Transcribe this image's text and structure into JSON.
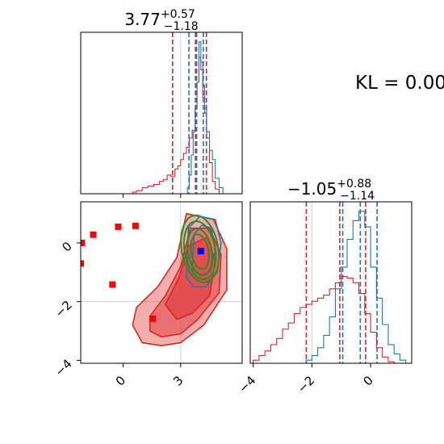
{
  "kl_text": "KL = 0.00",
  "colors": {
    "red": "#d62728",
    "blue": "#1f77b4",
    "green": "#2e8b1f",
    "red_fill": "#e2494a",
    "marker_red": "#ff0000",
    "marker_blue": "#0000ff",
    "grid": "#cfcfcf"
  },
  "chart_data": [
    {
      "panel": "top-left",
      "type": "histogram",
      "title": {
        "value": "3.77",
        "sup": "+0.57",
        "sub": "−1.18"
      },
      "xlim": [
        -2.2,
        6.2
      ],
      "grid_x": [
        3
      ],
      "series": [
        {
          "name": "",
          "color": "red",
          "bins": [
            [
              0,
              0.0
            ],
            [
              0.5,
              0.01
            ],
            [
              0.7,
              0.02
            ],
            [
              1.0,
              0.04
            ],
            [
              1.3,
              0.05
            ],
            [
              1.6,
              0.06
            ],
            [
              1.9,
              0.08
            ],
            [
              2.1,
              0.09
            ],
            [
              2.3,
              0.12
            ],
            [
              2.5,
              0.11
            ],
            [
              2.7,
              0.16
            ],
            [
              2.85,
              0.18
            ],
            [
              3.0,
              0.22
            ],
            [
              3.15,
              0.26
            ],
            [
              3.3,
              0.3
            ],
            [
              3.45,
              0.36
            ],
            [
              3.6,
              0.41
            ],
            [
              3.75,
              0.55
            ],
            [
              3.85,
              0.72
            ],
            [
              3.95,
              0.88
            ],
            [
              4.05,
              0.8
            ],
            [
              4.15,
              0.62
            ],
            [
              4.25,
              0.52
            ],
            [
              4.35,
              0.36
            ],
            [
              4.5,
              0.2
            ],
            [
              4.65,
              0.08
            ],
            [
              4.8,
              0.03
            ],
            [
              5.0,
              0.0
            ]
          ]
        },
        {
          "name": "",
          "color": "blue",
          "bins": [
            [
              3.2,
              0.0
            ],
            [
              3.35,
              0.04
            ],
            [
              3.45,
              0.12
            ],
            [
              3.55,
              0.25
            ],
            [
              3.65,
              0.4
            ],
            [
              3.75,
              0.55
            ],
            [
              3.85,
              0.72
            ],
            [
              3.95,
              0.98
            ],
            [
              4.05,
              0.85
            ],
            [
              4.15,
              0.7
            ],
            [
              4.25,
              0.55
            ],
            [
              4.35,
              0.4
            ],
            [
              4.5,
              0.28
            ],
            [
              4.65,
              0.22
            ],
            [
              4.8,
              0.1
            ],
            [
              5.0,
              0.04
            ],
            [
              5.2,
              0.0
            ]
          ]
        }
      ],
      "vlines": [
        {
          "x": 2.58,
          "color": "red"
        },
        {
          "x": 3.77,
          "color": "red"
        },
        {
          "x": 4.34,
          "color": "red"
        },
        {
          "x": 3.43,
          "color": "blue"
        },
        {
          "x": 3.83,
          "color": "blue"
        },
        {
          "x": 4.18,
          "color": "blue"
        }
      ]
    },
    {
      "panel": "bottom-left",
      "type": "scatter-contour",
      "xlim": [
        -2.2,
        6.2
      ],
      "ylim": [
        -4.1,
        1.4
      ],
      "xticks": [
        0,
        3
      ],
      "xtick_labels": [
        "0",
        "3"
      ],
      "yticks": [
        0,
        -2,
        -4
      ],
      "ytick_labels": [
        "0",
        "−2",
        "−4"
      ],
      "grid_x": [
        3
      ],
      "grid_y": [
        -2
      ],
      "markers_red": [
        [
          -2.2,
          -0.7
        ],
        [
          -2.15,
          0.0
        ],
        [
          -1.55,
          0.28
        ],
        [
          -0.55,
          -1.42
        ],
        [
          -0.25,
          0.55
        ],
        [
          0.65,
          0.58
        ],
        [
          1.55,
          -2.58
        ]
      ],
      "marker_blue": [
        4.05,
        -0.28
      ],
      "contours_red": [
        [
          [
            0.7,
            -2.2
          ],
          [
            1.8,
            -1.5
          ],
          [
            2.8,
            -0.5
          ],
          [
            3.3,
            1.0
          ],
          [
            4.7,
            0.8
          ],
          [
            5.4,
            -0.2
          ],
          [
            5.4,
            -1.6
          ],
          [
            4.2,
            -2.8
          ],
          [
            3.0,
            -3.4
          ],
          [
            2.0,
            -3.5
          ],
          [
            1.0,
            -3.4
          ],
          [
            0.5,
            -2.8
          ]
        ],
        [
          [
            1.4,
            -2.5
          ],
          [
            2.2,
            -1.8
          ],
          [
            3.0,
            -0.8
          ],
          [
            3.5,
            0.5
          ],
          [
            4.5,
            0.5
          ],
          [
            5.1,
            -0.4
          ],
          [
            5.0,
            -1.7
          ],
          [
            3.9,
            -2.6
          ],
          [
            3.0,
            -3.1
          ],
          [
            2.0,
            -3.2
          ],
          [
            1.4,
            -3.0
          ]
        ],
        [
          [
            2.2,
            -2.1
          ],
          [
            2.9,
            -1.2
          ],
          [
            3.4,
            -0.1
          ],
          [
            4.4,
            0.2
          ],
          [
            4.8,
            -0.6
          ],
          [
            4.5,
            -1.8
          ],
          [
            3.6,
            -2.4
          ],
          [
            2.8,
            -2.6
          ]
        ]
      ],
      "contours_blue": [
        [
          [
            3.3,
            -1.2
          ],
          [
            3.4,
            0.5
          ],
          [
            4.0,
            0.9
          ],
          [
            4.8,
            0.8
          ],
          [
            5.1,
            0.0
          ],
          [
            4.9,
            -1.0
          ],
          [
            4.3,
            -1.5
          ],
          [
            3.7,
            -1.5
          ]
        ],
        [
          [
            3.6,
            -0.9
          ],
          [
            3.7,
            0.3
          ],
          [
            4.1,
            0.6
          ],
          [
            4.6,
            0.5
          ],
          [
            4.8,
            -0.3
          ],
          [
            4.5,
            -1.0
          ],
          [
            4.0,
            -1.1
          ]
        ]
      ],
      "ellipses_green": [
        {
          "cx": 4.0,
          "cy": -0.2,
          "rx": 0.95,
          "ry": 1.15,
          "rot": -10
        },
        {
          "cx": 4.0,
          "cy": -0.25,
          "rx": 0.8,
          "ry": 1.0,
          "rot": -10
        },
        {
          "cx": 4.0,
          "cy": -0.3,
          "rx": 0.62,
          "ry": 0.8,
          "rot": -10
        },
        {
          "cx": 4.0,
          "cy": -0.3,
          "rx": 0.45,
          "ry": 0.6,
          "rot": -10
        }
      ]
    },
    {
      "panel": "bottom-right",
      "type": "histogram",
      "title": {
        "value": "−1.05",
        "sup": "+0.88",
        "sub": "−1.14"
      },
      "xlim": [
        -4.1,
        1.4
      ],
      "xticks": [
        -4,
        -2,
        0
      ],
      "xtick_labels": [
        "−4",
        "−2",
        "0"
      ],
      "grid_x": [
        -2
      ],
      "series": [
        {
          "name": "",
          "color": "red",
          "bins": [
            [
              -4.1,
              0.0
            ],
            [
              -4.0,
              0.02
            ],
            [
              -3.8,
              0.05
            ],
            [
              -3.6,
              0.08
            ],
            [
              -3.4,
              0.12
            ],
            [
              -3.2,
              0.16
            ],
            [
              -3.0,
              0.22
            ],
            [
              -2.8,
              0.26
            ],
            [
              -2.6,
              0.32
            ],
            [
              -2.4,
              0.36
            ],
            [
              -2.2,
              0.38
            ],
            [
              -2.0,
              0.4
            ],
            [
              -1.8,
              0.42
            ],
            [
              -1.6,
              0.44
            ],
            [
              -1.4,
              0.48
            ],
            [
              -1.2,
              0.52
            ],
            [
              -1.0,
              0.56
            ],
            [
              -0.8,
              0.55
            ],
            [
              -0.6,
              0.52
            ],
            [
              -0.4,
              0.45
            ],
            [
              -0.2,
              0.32
            ],
            [
              0.0,
              0.2
            ],
            [
              0.2,
              0.1
            ],
            [
              0.4,
              0.04
            ],
            [
              0.6,
              0.01
            ],
            [
              0.8,
              0.0
            ]
          ]
        },
        {
          "name": "",
          "color": "blue",
          "bins": [
            [
              -2.4,
              0.0
            ],
            [
              -2.2,
              0.02
            ],
            [
              -2.0,
              0.05
            ],
            [
              -1.8,
              0.1
            ],
            [
              -1.6,
              0.18
            ],
            [
              -1.4,
              0.3
            ],
            [
              -1.2,
              0.48
            ],
            [
              -1.0,
              0.62
            ],
            [
              -0.8,
              0.8
            ],
            [
              -0.6,
              0.92
            ],
            [
              -0.4,
              0.98
            ],
            [
              -0.2,
              0.88
            ],
            [
              0.0,
              0.62
            ],
            [
              0.2,
              0.42
            ],
            [
              0.4,
              0.25
            ],
            [
              0.6,
              0.12
            ],
            [
              0.8,
              0.06
            ],
            [
              1.0,
              0.02
            ],
            [
              1.2,
              0.0
            ]
          ]
        }
      ],
      "vlines": [
        {
          "x": -2.19,
          "color": "red"
        },
        {
          "x": -1.05,
          "color": "red"
        },
        {
          "x": -0.17,
          "color": "red"
        },
        {
          "x": -0.95,
          "color": "blue"
        },
        {
          "x": -0.35,
          "color": "blue"
        },
        {
          "x": 0.22,
          "color": "blue"
        }
      ]
    }
  ]
}
